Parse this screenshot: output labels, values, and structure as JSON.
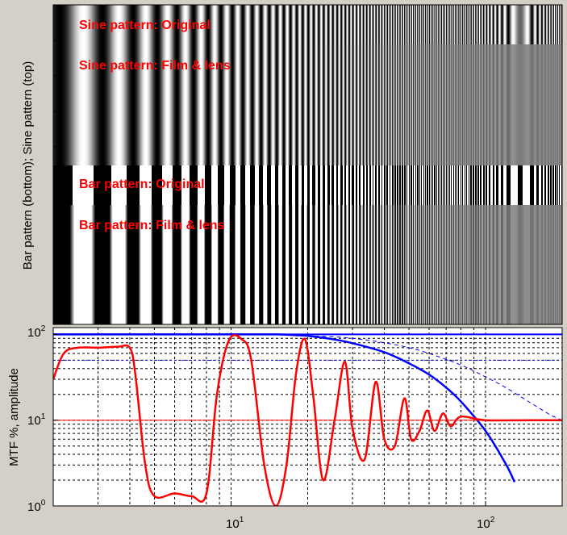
{
  "chart_data": [
    {
      "type": "heatmap",
      "ylabel": "Bar pattern (bottom); Sine pattern (top)",
      "x_range": [
        2,
        200
      ],
      "x_scale": "log",
      "strips": [
        {
          "label": "Sine pattern: Original"
        },
        {
          "label": "Sine pattern: Film & lens"
        },
        {
          "label": "Bar pattern: Original"
        },
        {
          "label": "Bar pattern: Film & lens"
        }
      ]
    },
    {
      "type": "line",
      "ylabel": "MTF %, amplitude",
      "xscale": "log",
      "yscale": "log",
      "xlim": [
        2,
        200
      ],
      "ylim": [
        1,
        120
      ],
      "grid": true,
      "x_ticks": [
        {
          "base": "10",
          "exp": "1",
          "value": 10
        },
        {
          "base": "10",
          "exp": "2",
          "value": 100
        }
      ],
      "y_ticks": [
        {
          "base": "10",
          "exp": "0",
          "value": 1
        },
        {
          "base": "10",
          "exp": "1",
          "value": 10
        },
        {
          "base": "10",
          "exp": "2",
          "value": 100
        }
      ],
      "series": [
        {
          "kind": "mtf_total",
          "color": "#0000ff",
          "style": "solid",
          "x": [
            2,
            5,
            10,
            15,
            18,
            20,
            25,
            30,
            40,
            50,
            60,
            70,
            80,
            100,
            120,
            130
          ],
          "y": [
            100,
            100,
            100,
            100,
            98,
            96,
            88,
            79,
            62,
            46,
            34,
            24,
            16.5,
            7.5,
            3.1,
            1.9
          ]
        },
        {
          "kind": "mtf_partial",
          "color": "#0000ff",
          "style": "dashed",
          "x": [
            20,
            25,
            30,
            40,
            50,
            60,
            80,
            100,
            120,
            150,
            180,
            200
          ],
          "y": [
            96,
            94,
            90,
            80,
            70,
            60,
            44,
            32,
            24,
            16,
            11.5,
            10
          ]
        },
        {
          "kind": "ref_100",
          "color": "#0000ff",
          "style": "solid",
          "x": [
            2,
            200
          ],
          "y": [
            100,
            100
          ]
        },
        {
          "kind": "ref_50",
          "color": "#0000ff",
          "style": "dotted",
          "x": [
            2,
            200
          ],
          "y": [
            50,
            50
          ]
        },
        {
          "kind": "ref_10",
          "color": "#ff0000",
          "style": "solid",
          "x": [
            2,
            200
          ],
          "y": [
            10,
            10
          ]
        },
        {
          "kind": "bar_amplitude",
          "color": "#ff0000",
          "style": "solid",
          "x": [
            2,
            2.2,
            2.5,
            3,
            3.6,
            4,
            4.2,
            4.6,
            5,
            6,
            7,
            8,
            8.8,
            9.8,
            11,
            12,
            13.5,
            15,
            16.5,
            18,
            19.5,
            21,
            23,
            25.5,
            28,
            30,
            33.5,
            37,
            40,
            44,
            48,
            51,
            55,
            59,
            63,
            68,
            73,
            80,
            100,
            150,
            200
          ],
          "y": [
            30,
            60,
            70,
            70,
            72,
            70,
            35,
            3,
            1.3,
            1.4,
            1.3,
            1.4,
            20,
            85,
            88,
            50,
            3,
            1,
            3,
            35,
            88,
            20,
            2,
            10,
            48,
            8,
            3.5,
            28,
            6,
            5,
            18,
            6,
            7.5,
            13,
            7.5,
            12,
            8.5,
            11,
            10,
            10,
            10
          ]
        }
      ]
    }
  ]
}
